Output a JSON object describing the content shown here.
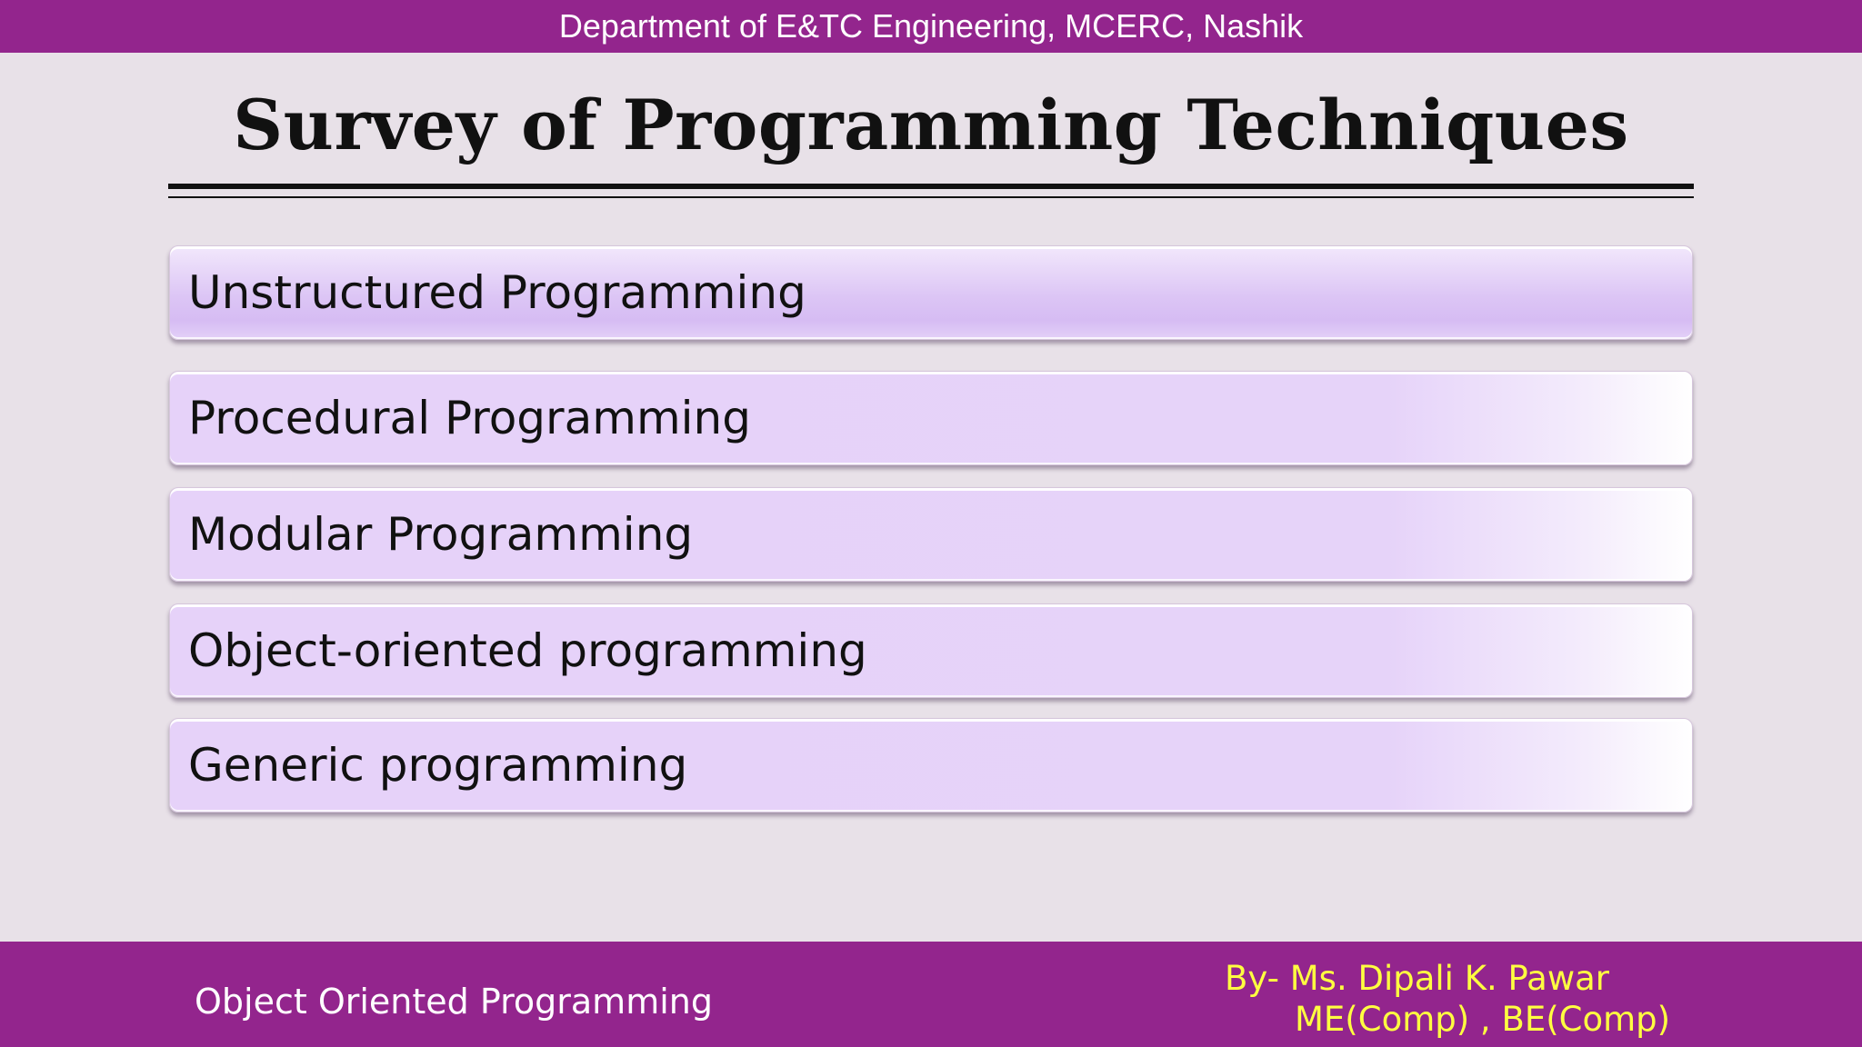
{
  "header": {
    "department": "Department of E&TC Engineering, MCERC, Nashik"
  },
  "slide": {
    "title": "Survey of Programming Techniques",
    "items": [
      {
        "label": "Unstructured Programming"
      },
      {
        "label": "Procedural Programming"
      },
      {
        "label": "Modular Programming"
      },
      {
        "label": "Object-oriented programming"
      },
      {
        "label": "Generic programming"
      }
    ]
  },
  "footer": {
    "course": "Object Oriented Programming",
    "author_line1": "By- Ms.  Dipali K.  Pawar",
    "author_line2": "ME(Comp) , BE(Comp)"
  },
  "colors": {
    "bar": "#93258d",
    "background": "#e8e1e8",
    "item_fill": "#e6d3f9",
    "author_text": "#ffff40"
  }
}
